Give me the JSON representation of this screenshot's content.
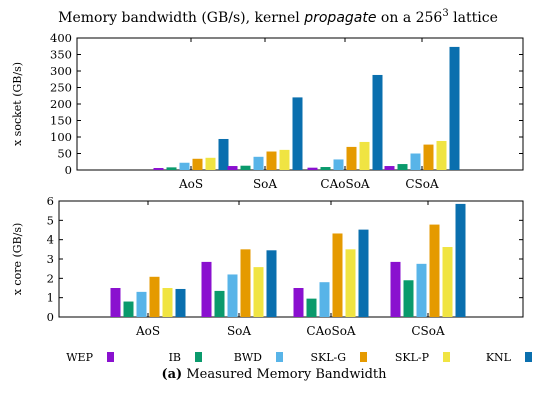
{
  "figure": {
    "title_pre": "Memory bandwidth (GB/s), kernel ",
    "title_kernel": "propagate",
    "title_mid": " on a 256",
    "title_sup": "3",
    "title_post": " lattice",
    "caption_label": "(a)",
    "caption_text": " Measured Memory Bandwidth"
  },
  "colors": {
    "WEP": "#8a10cf",
    "IB": "#0a9a6c",
    "BWD": "#58b4e8",
    "SKL-G": "#e59a00",
    "SKL-P": "#f0e442",
    "KNL": "#0a6fae"
  },
  "chart_data": [
    {
      "type": "bar",
      "ylabel": "x socket (GB/s)",
      "ylim": [
        0,
        400
      ],
      "yticks": [
        0,
        50,
        100,
        150,
        200,
        250,
        300,
        350,
        400
      ],
      "categories": [
        "AoS",
        "SoA",
        "CAoSoA",
        "CSoA"
      ],
      "series": [
        {
          "name": "WEP",
          "values": [
            6,
            12,
            7,
            12
          ]
        },
        {
          "name": "IB",
          "values": [
            8,
            13,
            9,
            18
          ]
        },
        {
          "name": "BWD",
          "values": [
            22,
            40,
            32,
            50
          ]
        },
        {
          "name": "SKL-G",
          "values": [
            34,
            56,
            70,
            77
          ]
        },
        {
          "name": "SKL-P",
          "values": [
            37,
            61,
            85,
            88
          ]
        },
        {
          "name": "KNL",
          "values": [
            94,
            220,
            288,
            373
          ]
        }
      ]
    },
    {
      "type": "bar",
      "ylabel": "x core (GB/s)",
      "ylim": [
        0,
        6
      ],
      "yticks": [
        0,
        1,
        2,
        3,
        4,
        5,
        6
      ],
      "categories": [
        "AoS",
        "SoA",
        "CAoSoA",
        "CSoA"
      ],
      "series": [
        {
          "name": "WEP",
          "values": [
            1.5,
            2.85,
            1.5,
            2.85
          ]
        },
        {
          "name": "IB",
          "values": [
            0.8,
            1.35,
            0.95,
            1.9
          ]
        },
        {
          "name": "BWD",
          "values": [
            1.3,
            2.2,
            1.8,
            2.75
          ]
        },
        {
          "name": "SKL-G",
          "values": [
            2.08,
            3.5,
            4.32,
            4.78
          ]
        },
        {
          "name": "SKL-P",
          "values": [
            1.5,
            2.58,
            3.5,
            3.62
          ]
        },
        {
          "name": "KNL",
          "values": [
            1.45,
            3.45,
            4.52,
            5.85
          ]
        }
      ]
    }
  ]
}
